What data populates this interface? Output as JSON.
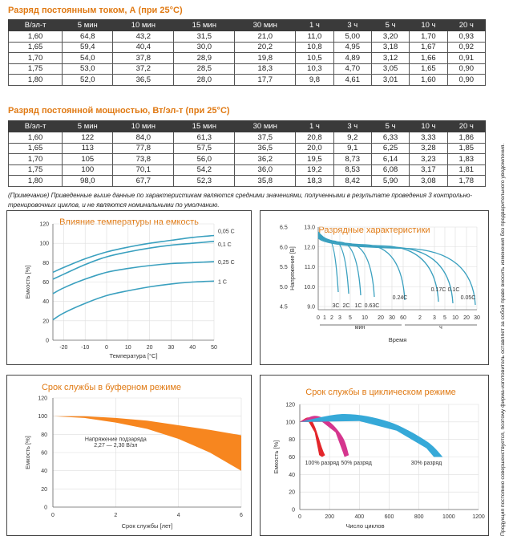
{
  "table1": {
    "title": "Разряд постоянным током, А (при 25°С)",
    "headers": [
      "В/эл-т",
      "5 мин",
      "10 мин",
      "15 мин",
      "30 мин",
      "1 ч",
      "3 ч",
      "5 ч",
      "10 ч",
      "20 ч"
    ],
    "rows": [
      [
        "1,60",
        "64,8",
        "43,2",
        "31,5",
        "21,0",
        "11,0",
        "5,00",
        "3,20",
        "1,70",
        "0,93"
      ],
      [
        "1,65",
        "59,4",
        "40,4",
        "30,0",
        "20,2",
        "10,8",
        "4,95",
        "3,18",
        "1,67",
        "0,92"
      ],
      [
        "1,70",
        "54,0",
        "37,8",
        "28,9",
        "19,8",
        "10,5",
        "4,89",
        "3,12",
        "1,66",
        "0,91"
      ],
      [
        "1,75",
        "53,0",
        "37,2",
        "28,5",
        "18,3",
        "10,3",
        "4,70",
        "3,05",
        "1,65",
        "0,90"
      ],
      [
        "1,80",
        "52,0",
        "36,5",
        "28,0",
        "17,7",
        "9,8",
        "4,61",
        "3,01",
        "1,60",
        "0,90"
      ]
    ]
  },
  "table2": {
    "title": "Разряд постоянной мощностью, Вт/эл-т (при 25°С)",
    "headers": [
      "В/эл-т",
      "5 мин",
      "10 мин",
      "15 мин",
      "30 мин",
      "1 ч",
      "3 ч",
      "5 ч",
      "10 ч",
      "20 ч"
    ],
    "rows": [
      [
        "1,60",
        "122",
        "84,0",
        "61,3",
        "37,5",
        "20,8",
        "9,2",
        "6,33",
        "3,33",
        "1,86"
      ],
      [
        "1,65",
        "113",
        "77,8",
        "57,5",
        "36,5",
        "20,0",
        "9,1",
        "6,25",
        "3,28",
        "1,85"
      ],
      [
        "1,70",
        "105",
        "73,8",
        "56,0",
        "36,2",
        "19,5",
        "8,73",
        "6,14",
        "3,23",
        "1,83"
      ],
      [
        "1,75",
        "100",
        "70,1",
        "54,2",
        "36,0",
        "19,2",
        "8,53",
        "6,08",
        "3,17",
        "1,81"
      ],
      [
        "1,80",
        "98,0",
        "67,7",
        "52,3",
        "35,8",
        "18,3",
        "8,42",
        "5,90",
        "3,08",
        "1,78"
      ]
    ]
  },
  "note": "(Примечание) Приведенные выше данные по характеристикам являются средними значениями, полученными в результате проведения 3 контрольно-тренировочных циклов, и не являются номинальными по умолчанию.",
  "side_text": "Продукция постоянно совершенствуется, поэтому фирма-изготовитель оставляет за собой право вносить изменения без предварительного уведомления.",
  "colors": {
    "accent": "#e07a14",
    "teal": "#3aa0bf",
    "orange_fill": "#f7861f",
    "red": "#e3262b",
    "magenta": "#d5368e",
    "cyan": "#36a9d8"
  },
  "chart_data": [
    {
      "type": "line",
      "title": "Влияние температуры на емкость",
      "xlabel": "Температура [°C]",
      "ylabel": "Емкость [%]",
      "xlim": [
        -25,
        50
      ],
      "ylim": [
        0,
        120
      ],
      "x_ticks": [
        "-20",
        "-10",
        "0",
        "10",
        "20",
        "30",
        "40",
        "50"
      ],
      "y_ticks": [
        "0",
        "20",
        "40",
        "60",
        "80",
        "100",
        "120"
      ],
      "series": [
        {
          "name": "0,05 C",
          "x": [
            -25,
            -20,
            -10,
            0,
            10,
            20,
            30,
            40,
            50
          ],
          "y": [
            70,
            75,
            84,
            91,
            96,
            100,
            103,
            106,
            108
          ]
        },
        {
          "name": "0,1 C",
          "x": [
            -25,
            -20,
            -10,
            0,
            10,
            20,
            30,
            40,
            50
          ],
          "y": [
            63,
            68,
            78,
            86,
            91,
            95,
            98,
            100,
            102
          ]
        },
        {
          "name": "0,25 C",
          "x": [
            -25,
            -20,
            -10,
            0,
            10,
            20,
            30,
            40,
            50
          ],
          "y": [
            48,
            54,
            63,
            70,
            74,
            77,
            79,
            80,
            81
          ]
        },
        {
          "name": "1 C",
          "x": [
            -25,
            -20,
            -10,
            0,
            10,
            20,
            30,
            40,
            50
          ],
          "y": [
            21,
            28,
            38,
            46,
            51,
            55,
            58,
            60,
            61
          ]
        }
      ]
    },
    {
      "type": "line",
      "title": "Разрядные характеристики",
      "xlabel": "Время",
      "ylabel": "Напряжение [В]",
      "y_ticks_left": [
        "4.5",
        "5.0",
        "5.5",
        "6.0",
        "6.5"
      ],
      "y_ticks_right": [
        "9.0",
        "10.0",
        "11.0",
        "12.0",
        "13.0"
      ],
      "x_ticks": [
        "0",
        "1",
        "2",
        "3",
        "5",
        "10",
        "20",
        "30",
        "60",
        "2",
        "3",
        "5",
        "10",
        "20",
        "30"
      ],
      "x_units": [
        "мин",
        "ч"
      ],
      "series": [
        {
          "name": "3C"
        },
        {
          "name": "2C"
        },
        {
          "name": "1C"
        },
        {
          "name": "0.63C"
        },
        {
          "name": "0.24C"
        },
        {
          "name": "0.17C"
        },
        {
          "name": "0.1C"
        },
        {
          "name": "0.05C"
        }
      ]
    },
    {
      "type": "area",
      "title": "Срок службы в буферном режиме",
      "xlabel": "Срок службы [лет]",
      "ylabel": "Емкость [%]",
      "xlim": [
        0,
        6
      ],
      "ylim": [
        0,
        120
      ],
      "x_ticks": [
        "0",
        "2",
        "4",
        "6"
      ],
      "y_ticks": [
        "0",
        "20",
        "40",
        "60",
        "80",
        "100",
        "120"
      ],
      "annotation": "Напряжение подзаряда\n2,27 — 2,30 В/эл",
      "upper": {
        "x": [
          0,
          1,
          2,
          3,
          4,
          5,
          6
        ],
        "y": [
          100,
          100,
          98,
          95,
          90,
          85,
          79
        ]
      },
      "lower": {
        "x": [
          0,
          1,
          2,
          3,
          4,
          5,
          6
        ],
        "y": [
          100,
          98,
          93,
          86,
          75,
          60,
          40
        ]
      }
    },
    {
      "type": "area",
      "title": "Срок службы в циклическом режиме",
      "xlabel": "Число циклов",
      "ylabel": "Емкость [%]",
      "xlim": [
        0,
        1200
      ],
      "ylim": [
        0,
        120
      ],
      "x_ticks": [
        "0",
        "200",
        "400",
        "600",
        "800",
        "1000",
        "1200"
      ],
      "y_ticks": [
        "0",
        "20",
        "40",
        "60",
        "80",
        "100",
        "120"
      ],
      "series": [
        {
          "name": "100% разряд",
          "color": "red"
        },
        {
          "name": "50% разряд",
          "color": "magenta"
        },
        {
          "name": "30% разряд",
          "color": "cyan"
        }
      ]
    }
  ]
}
